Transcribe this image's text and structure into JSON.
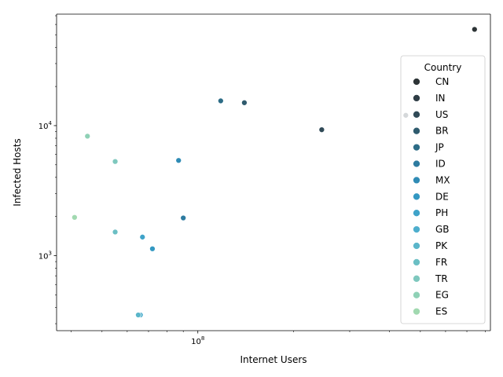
{
  "chart_data": {
    "type": "scatter",
    "title": "",
    "xlabel": "Internet Users",
    "ylabel": "Infected Hosts",
    "xscale": "log",
    "yscale": "log",
    "xlim": [
      36000000,
      830000000
    ],
    "ylim": [
      265,
      72000
    ],
    "x_ticks": [
      {
        "value": 100000000,
        "label": "10^8"
      }
    ],
    "y_ticks": [
      {
        "value": 1000,
        "label": "10^3"
      },
      {
        "value": 10000,
        "label": "10^4"
      }
    ],
    "grid": false,
    "legend": {
      "title": "Country",
      "placement": "right"
    },
    "series": [
      {
        "name": "CN",
        "color": "#2d3436",
        "points": [
          [
            740000000,
            55000
          ]
        ]
      },
      {
        "name": "IN",
        "color": "#2f3d45",
        "points": [
          [
            450000000,
            12000
          ]
        ]
      },
      {
        "name": "US",
        "color": "#304a57",
        "points": [
          [
            245000000,
            9300
          ]
        ]
      },
      {
        "name": "BR",
        "color": "#2f5b6e",
        "points": [
          [
            140000000,
            15000
          ]
        ]
      },
      {
        "name": "JP",
        "color": "#2d6c86",
        "points": [
          [
            118000000,
            15500
          ]
        ]
      },
      {
        "name": "ID",
        "color": "#2d7ba0",
        "points": [
          [
            90000000,
            1950
          ]
        ]
      },
      {
        "name": "MX",
        "color": "#2f8bb5",
        "points": [
          [
            87000000,
            5400
          ]
        ]
      },
      {
        "name": "DE",
        "color": "#3398c2",
        "points": [
          [
            72000000,
            1130
          ]
        ]
      },
      {
        "name": "PH",
        "color": "#3fa3c9",
        "points": [
          [
            67000000,
            1390
          ]
        ]
      },
      {
        "name": "GB",
        "color": "#4eaecd",
        "points": [
          [
            66000000,
            350
          ]
        ]
      },
      {
        "name": "PK",
        "color": "#5bb6ca",
        "points": [
          [
            65000000,
            350
          ]
        ]
      },
      {
        "name": "FR",
        "color": "#6bbfc4",
        "points": [
          [
            55000000,
            1520
          ]
        ]
      },
      {
        "name": "TR",
        "color": "#7ec8be",
        "points": [
          [
            55000000,
            5300
          ]
        ]
      },
      {
        "name": "EG",
        "color": "#8fd1b6",
        "points": [
          [
            45000000,
            8300
          ]
        ]
      },
      {
        "name": "ES",
        "color": "#a1d9b0",
        "points": [
          [
            41000000,
            1970
          ]
        ]
      }
    ]
  }
}
